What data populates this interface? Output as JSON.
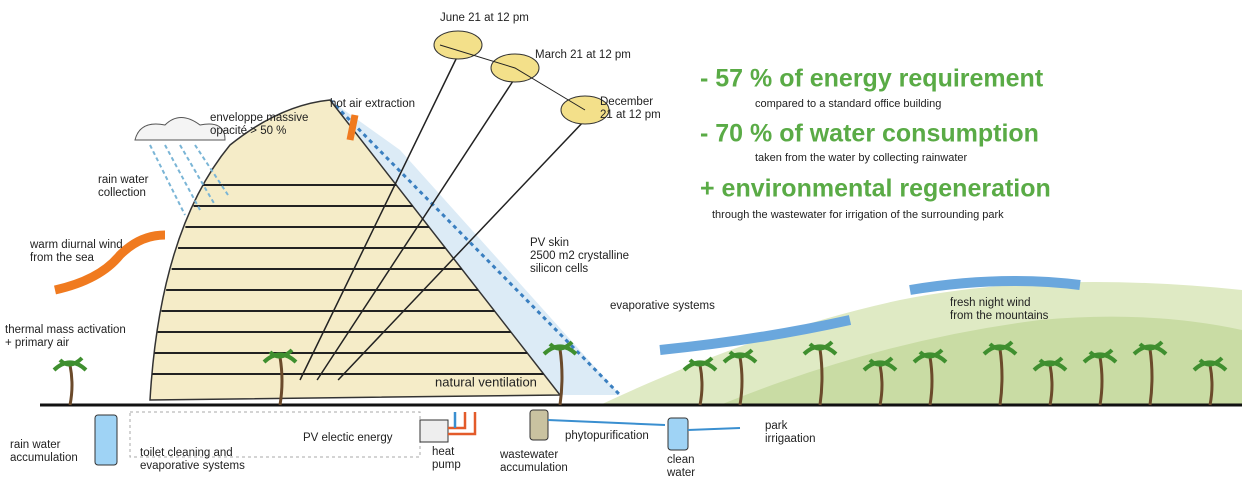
{
  "headlines": [
    {
      "title": "- 57 % of energy requirement",
      "subtitle": "compared to a standard office building"
    },
    {
      "title": "- 70 % of water consumption",
      "subtitle": "taken from the water by collecting rainwater"
    },
    {
      "title": "+ environmental regeneration",
      "subtitle": "through the wastewater for irrigation of the surrounding park"
    }
  ],
  "labels": [
    {
      "lines": [
        "June 21 at 12 pm"
      ]
    },
    {
      "lines": [
        "March 21 at 12 pm"
      ]
    },
    {
      "lines": [
        "December",
        "21 at 12 pm"
      ]
    },
    {
      "lines": [
        "hot air extraction"
      ]
    },
    {
      "lines": [
        "enveloppe massive",
        "opacité > 50 %"
      ]
    },
    {
      "lines": [
        "rain water",
        "collection"
      ]
    },
    {
      "lines": [
        "warm diurnal wind",
        "from the sea"
      ]
    },
    {
      "lines": [
        "thermal mass activation",
        "+ primary air"
      ]
    },
    {
      "lines": [
        "PV skin",
        "2500 m2 crystalline",
        "silicon cells"
      ]
    },
    {
      "lines": [
        "evaporative systems"
      ]
    },
    {
      "lines": [
        "fresh night wind",
        "from the mountains"
      ]
    },
    {
      "lines": [
        "natural ventilation"
      ]
    },
    {
      "lines": [
        "rain water",
        "accumulation"
      ]
    },
    {
      "lines": [
        "toilet cleaning and",
        "evaporative systems"
      ]
    },
    {
      "lines": [
        "PV electic energy"
      ]
    },
    {
      "lines": [
        "heat",
        "pump"
      ]
    },
    {
      "lines": [
        "wastewater",
        "accumulation"
      ]
    },
    {
      "lines": [
        "phytopurification"
      ]
    },
    {
      "lines": [
        "clean",
        "water"
      ]
    },
    {
      "lines": [
        "park",
        "irrigaation"
      ]
    }
  ]
}
